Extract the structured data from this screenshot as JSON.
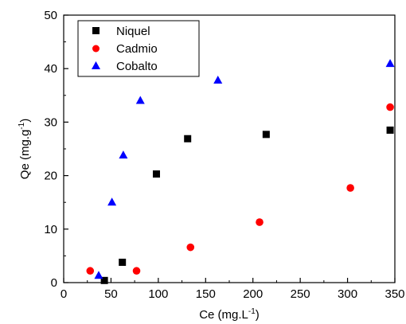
{
  "chart_data": {
    "type": "scatter",
    "title": "",
    "xlabel": "Ce (mg.L",
    "xlabel_sup": "-1",
    "xlabel_close": ")",
    "ylabel": "Qe (mg.g",
    "ylabel_sup": "-1",
    "ylabel_close": ")",
    "xlim": [
      0,
      350
    ],
    "ylim": [
      0,
      50
    ],
    "x_ticks": [
      "0",
      "50",
      "100",
      "150",
      "200",
      "250",
      "300",
      "350"
    ],
    "y_ticks": [
      "0",
      "10",
      "20",
      "30",
      "40",
      "50"
    ],
    "grid": false,
    "legend_position": "top-left",
    "series": [
      {
        "name": "Niquel",
        "marker": "square",
        "color": "#000000",
        "points": [
          [
            43,
            0.4
          ],
          [
            62,
            3.8
          ],
          [
            98,
            20.3
          ],
          [
            131,
            26.9
          ],
          [
            214,
            27.7
          ],
          [
            345,
            28.5
          ]
        ]
      },
      {
        "name": "Cadmio",
        "marker": "circle",
        "color": "#ff0000",
        "points": [
          [
            28,
            2.2
          ],
          [
            77,
            2.2
          ],
          [
            134,
            6.6
          ],
          [
            207,
            11.3
          ],
          [
            303,
            17.7
          ],
          [
            345,
            32.8
          ]
        ]
      },
      {
        "name": "Cobalto",
        "marker": "triangle",
        "color": "#0000ff",
        "points": [
          [
            37,
            1.3
          ],
          [
            51,
            15.0
          ],
          [
            63,
            23.8
          ],
          [
            81,
            34.0
          ],
          [
            163,
            37.8
          ],
          [
            345,
            40.9
          ]
        ]
      }
    ]
  }
}
